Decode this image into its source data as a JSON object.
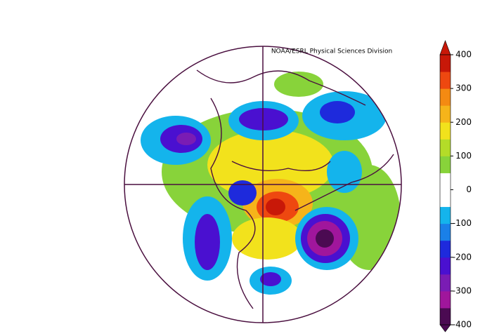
{
  "map": {
    "credit": "NOAA/ESRL Physical Sciences Division"
  },
  "colorbar": {
    "range": [
      -400,
      400
    ],
    "ticks": [
      400,
      300,
      200,
      100,
      0,
      -100,
      -200,
      -300,
      -400
    ],
    "colors": [
      "#4b0a52",
      "#a0169c",
      "#7a1cb4",
      "#4a10d0",
      "#1e2adc",
      "#1a80e8",
      "#14b4ec",
      "#ffffff",
      "#ffffff",
      "#88d33a",
      "#b4dc28",
      "#f2e21c",
      "#f6b41a",
      "#f48a12",
      "#ee4810",
      "#c81808"
    ]
  }
}
